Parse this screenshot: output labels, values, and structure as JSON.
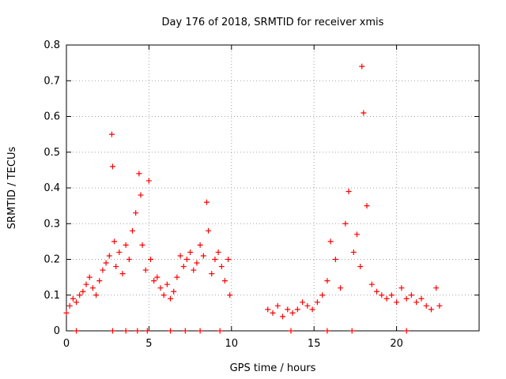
{
  "chart_data": {
    "type": "scatter",
    "title": "Day 176 of 2018, SRMTID for receiver xmis",
    "xlabel": "GPS time / hours",
    "ylabel": "SRMTID / TECUs",
    "xlim": [
      0,
      25
    ],
    "ylim": [
      0,
      0.8
    ],
    "grid": true,
    "marker": "+",
    "xticks": [
      {
        "value": 0,
        "label": "0"
      },
      {
        "value": 5,
        "label": "5"
      },
      {
        "value": 10,
        "label": "10"
      },
      {
        "value": 15,
        "label": "15"
      },
      {
        "value": 20,
        "label": "20"
      }
    ],
    "yticks": [
      {
        "value": 0,
        "label": "0"
      },
      {
        "value": 0.1,
        "label": "0.1"
      },
      {
        "value": 0.2,
        "label": "0.2"
      },
      {
        "value": 0.3,
        "label": "0.3"
      },
      {
        "value": 0.4,
        "label": "0.4"
      },
      {
        "value": 0.5,
        "label": "0.5"
      },
      {
        "value": 0.6,
        "label": "0.6"
      },
      {
        "value": 0.7,
        "label": "0.7"
      },
      {
        "value": 0.8,
        "label": "0.8"
      }
    ],
    "series": [
      {
        "name": "SRMTID",
        "color": "#ff0000",
        "x": [
          0.0,
          0.2,
          0.4,
          0.6,
          0.8,
          1.0,
          1.2,
          1.4,
          1.6,
          1.8,
          2.0,
          2.2,
          2.4,
          2.6,
          2.75,
          2.8,
          2.9,
          3.0,
          3.2,
          3.4,
          3.6,
          3.8,
          4.0,
          4.2,
          4.4,
          4.5,
          4.6,
          4.8,
          5.0,
          5.1,
          5.3,
          5.5,
          5.7,
          5.9,
          6.1,
          6.3,
          6.5,
          6.7,
          6.9,
          7.1,
          7.3,
          7.5,
          7.7,
          7.9,
          8.1,
          8.3,
          8.5,
          8.6,
          8.8,
          9.0,
          9.2,
          9.4,
          9.6,
          9.8,
          9.9,
          12.2,
          12.5,
          12.8,
          13.1,
          13.4,
          13.7,
          14.0,
          14.3,
          14.6,
          14.9,
          15.2,
          15.5,
          15.8,
          16.0,
          16.3,
          16.6,
          16.9,
          17.1,
          17.4,
          17.6,
          17.8,
          17.9,
          18.0,
          18.2,
          18.5,
          18.8,
          19.1,
          19.4,
          19.7,
          20.0,
          20.3,
          20.6,
          20.9,
          21.2,
          21.5,
          21.8,
          22.1,
          22.4,
          22.6,
          0.6,
          2.8,
          3.6,
          4.3,
          4.9,
          6.3,
          7.2,
          8.1,
          9.3,
          13.6,
          15.8,
          17.3,
          20.6
        ],
        "y": [
          0.05,
          0.07,
          0.09,
          0.08,
          0.1,
          0.11,
          0.13,
          0.15,
          0.12,
          0.1,
          0.14,
          0.17,
          0.19,
          0.21,
          0.55,
          0.46,
          0.25,
          0.18,
          0.22,
          0.16,
          0.24,
          0.2,
          0.28,
          0.33,
          0.44,
          0.38,
          0.24,
          0.17,
          0.42,
          0.2,
          0.14,
          0.15,
          0.12,
          0.1,
          0.13,
          0.09,
          0.11,
          0.15,
          0.21,
          0.18,
          0.2,
          0.22,
          0.17,
          0.19,
          0.24,
          0.21,
          0.36,
          0.28,
          0.16,
          0.2,
          0.22,
          0.18,
          0.14,
          0.2,
          0.1,
          0.06,
          0.05,
          0.07,
          0.04,
          0.06,
          0.05,
          0.06,
          0.08,
          0.07,
          0.06,
          0.08,
          0.1,
          0.14,
          0.25,
          0.2,
          0.12,
          0.3,
          0.39,
          0.22,
          0.27,
          0.18,
          0.74,
          0.61,
          0.35,
          0.13,
          0.11,
          0.1,
          0.09,
          0.1,
          0.08,
          0.12,
          0.09,
          0.1,
          0.08,
          0.09,
          0.07,
          0.06,
          0.12,
          0.07,
          0.0,
          0.0,
          0.0,
          0.0,
          0.0,
          0.0,
          0.0,
          0.0,
          0.0,
          0.0,
          0.0,
          0.0,
          0.0
        ]
      }
    ]
  }
}
